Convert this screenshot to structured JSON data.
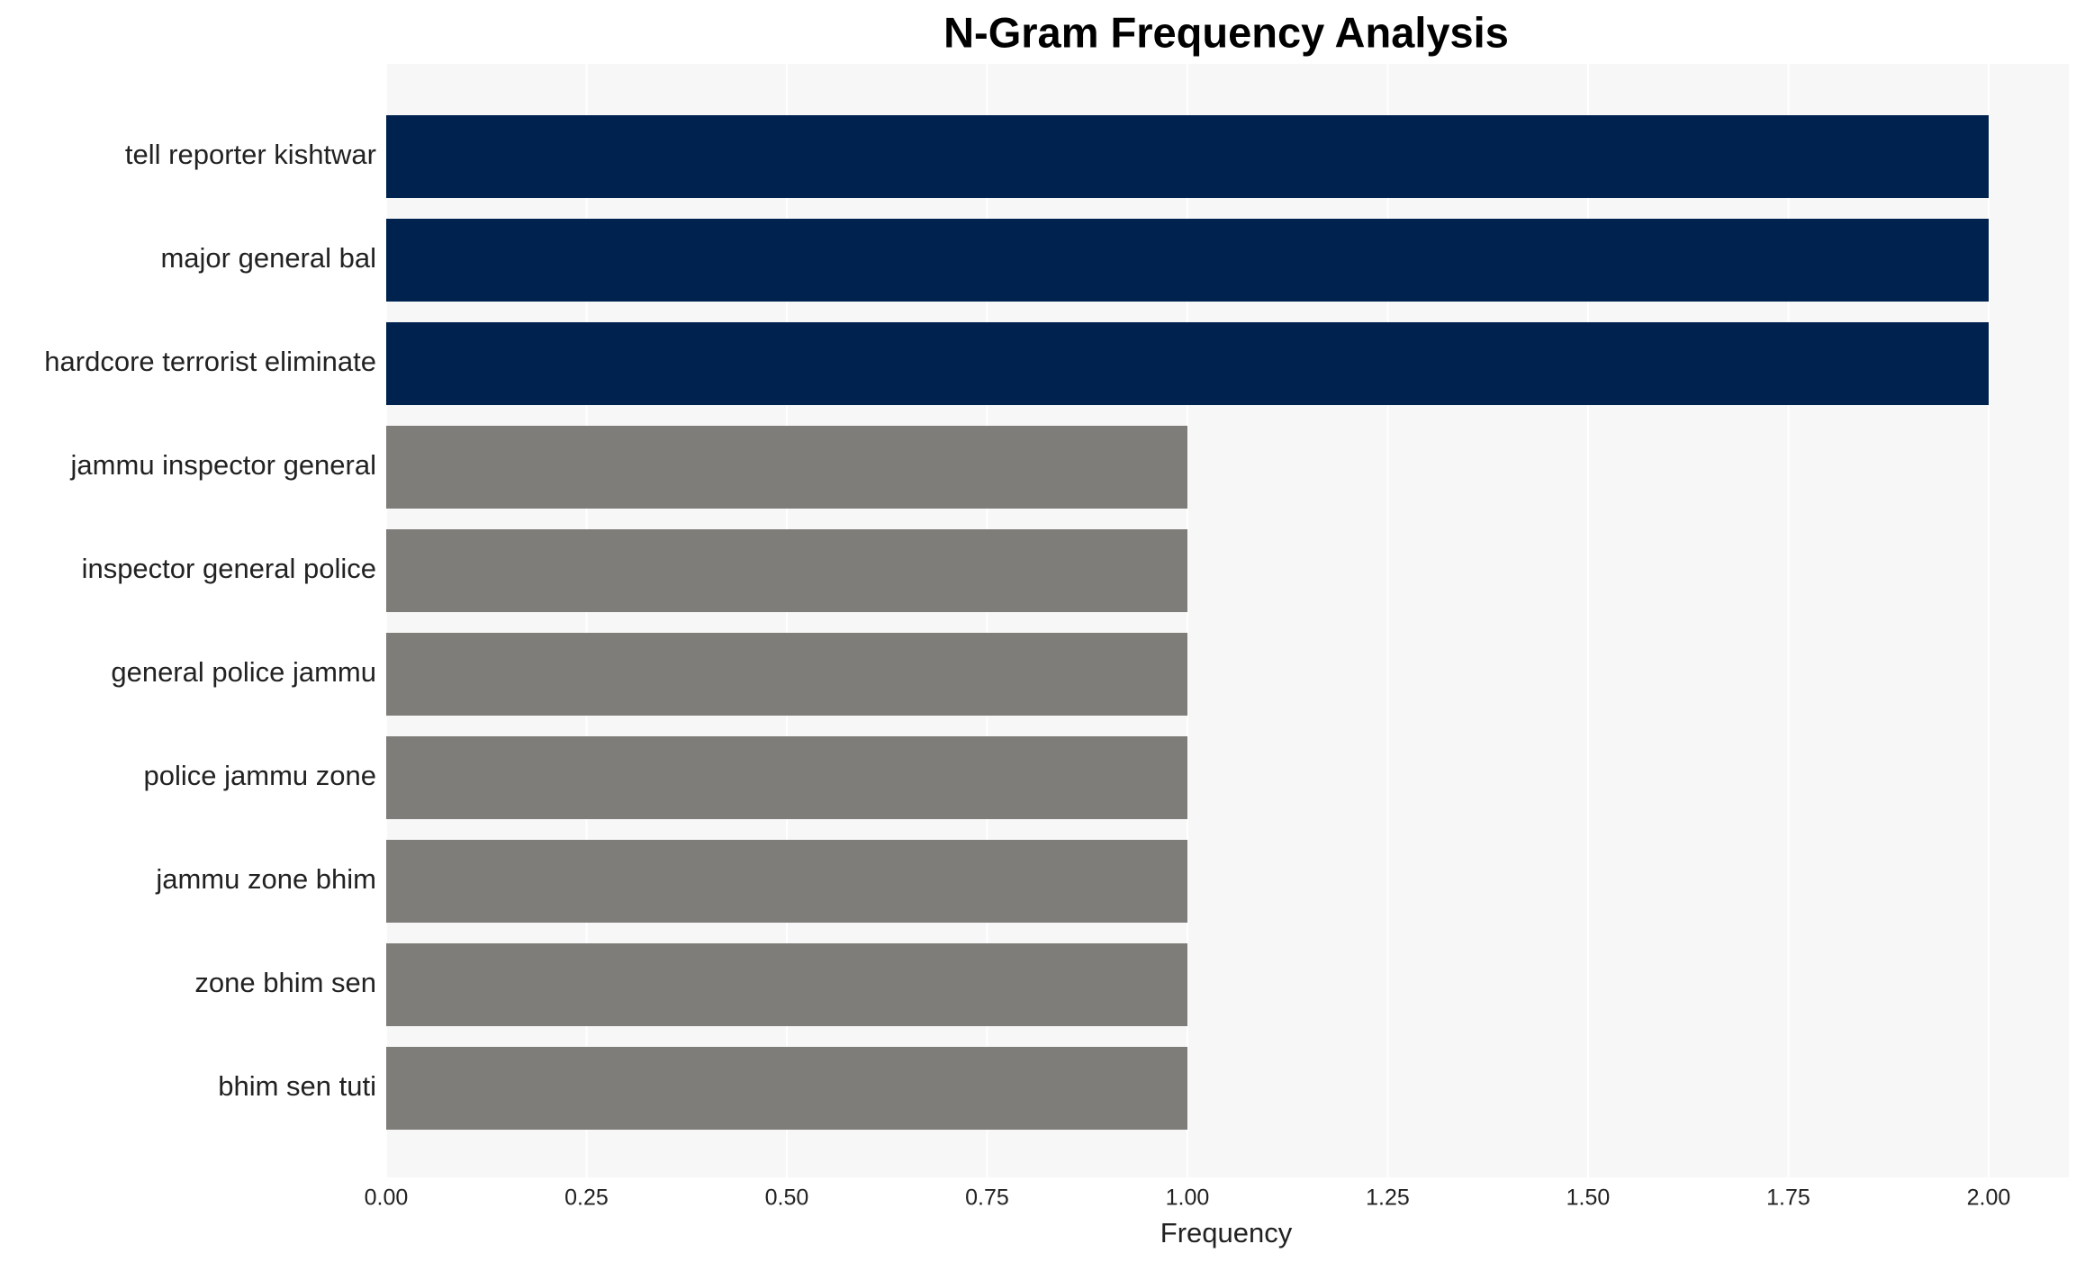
{
  "chart_data": {
    "type": "barh",
    "title": "N-Gram Frequency Analysis",
    "x_label": "Frequency",
    "categories": [
      "tell reporter kishtwar",
      "major general bal",
      "hardcore terrorist eliminate",
      "jammu inspector general",
      "inspector general police",
      "general police jammu",
      "police jammu zone",
      "jammu zone bhim",
      "zone bhim sen",
      "bhim sen tuti"
    ],
    "values": [
      2,
      2,
      2,
      1,
      1,
      1,
      1,
      1,
      1,
      1
    ],
    "colors": [
      "#00224e",
      "#00224e",
      "#00224e",
      "#7f7d79",
      "#7f7d79",
      "#7f7d79",
      "#7f7d79",
      "#7f7d79",
      "#7f7d79",
      "#7f7d79"
    ],
    "xlim": [
      0,
      2.1
    ],
    "xticks": [
      {
        "value": 0,
        "label": "0.00"
      },
      {
        "value": 0.25,
        "label": "0.25"
      },
      {
        "value": 0.5,
        "label": "0.50"
      },
      {
        "value": 0.75,
        "label": "0.75"
      },
      {
        "value": 1,
        "label": "1.00"
      },
      {
        "value": 1.25,
        "label": "1.25"
      },
      {
        "value": 1.5,
        "label": "1.50"
      },
      {
        "value": 1.75,
        "label": "1.75"
      },
      {
        "value": 2,
        "label": "2.00"
      }
    ],
    "grid": true
  }
}
